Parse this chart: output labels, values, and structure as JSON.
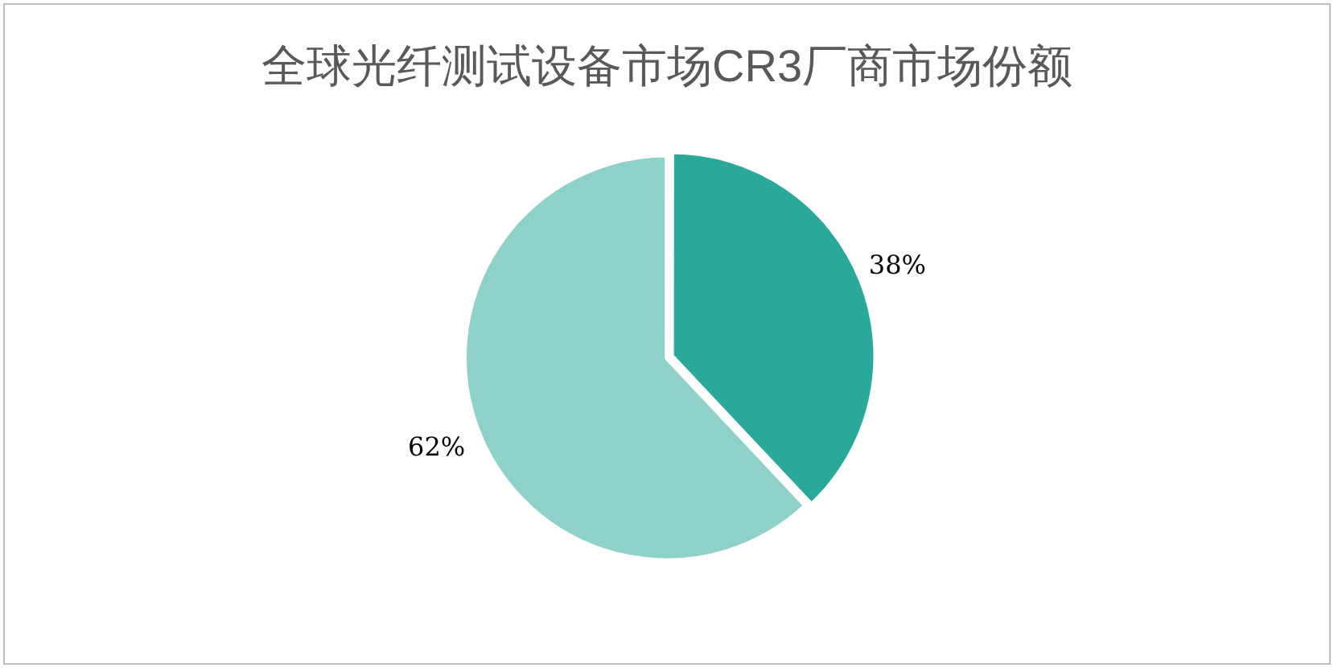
{
  "chart_data": {
    "type": "pie",
    "title": "全球光纤测试设备市场CR3厂商市场份额",
    "categories": [
      null,
      null
    ],
    "values": [
      38,
      62
    ],
    "colors": [
      "#2aa99b",
      "#8ed1c8"
    ],
    "value_labels": [
      "38%",
      "62%"
    ],
    "legend": false
  }
}
